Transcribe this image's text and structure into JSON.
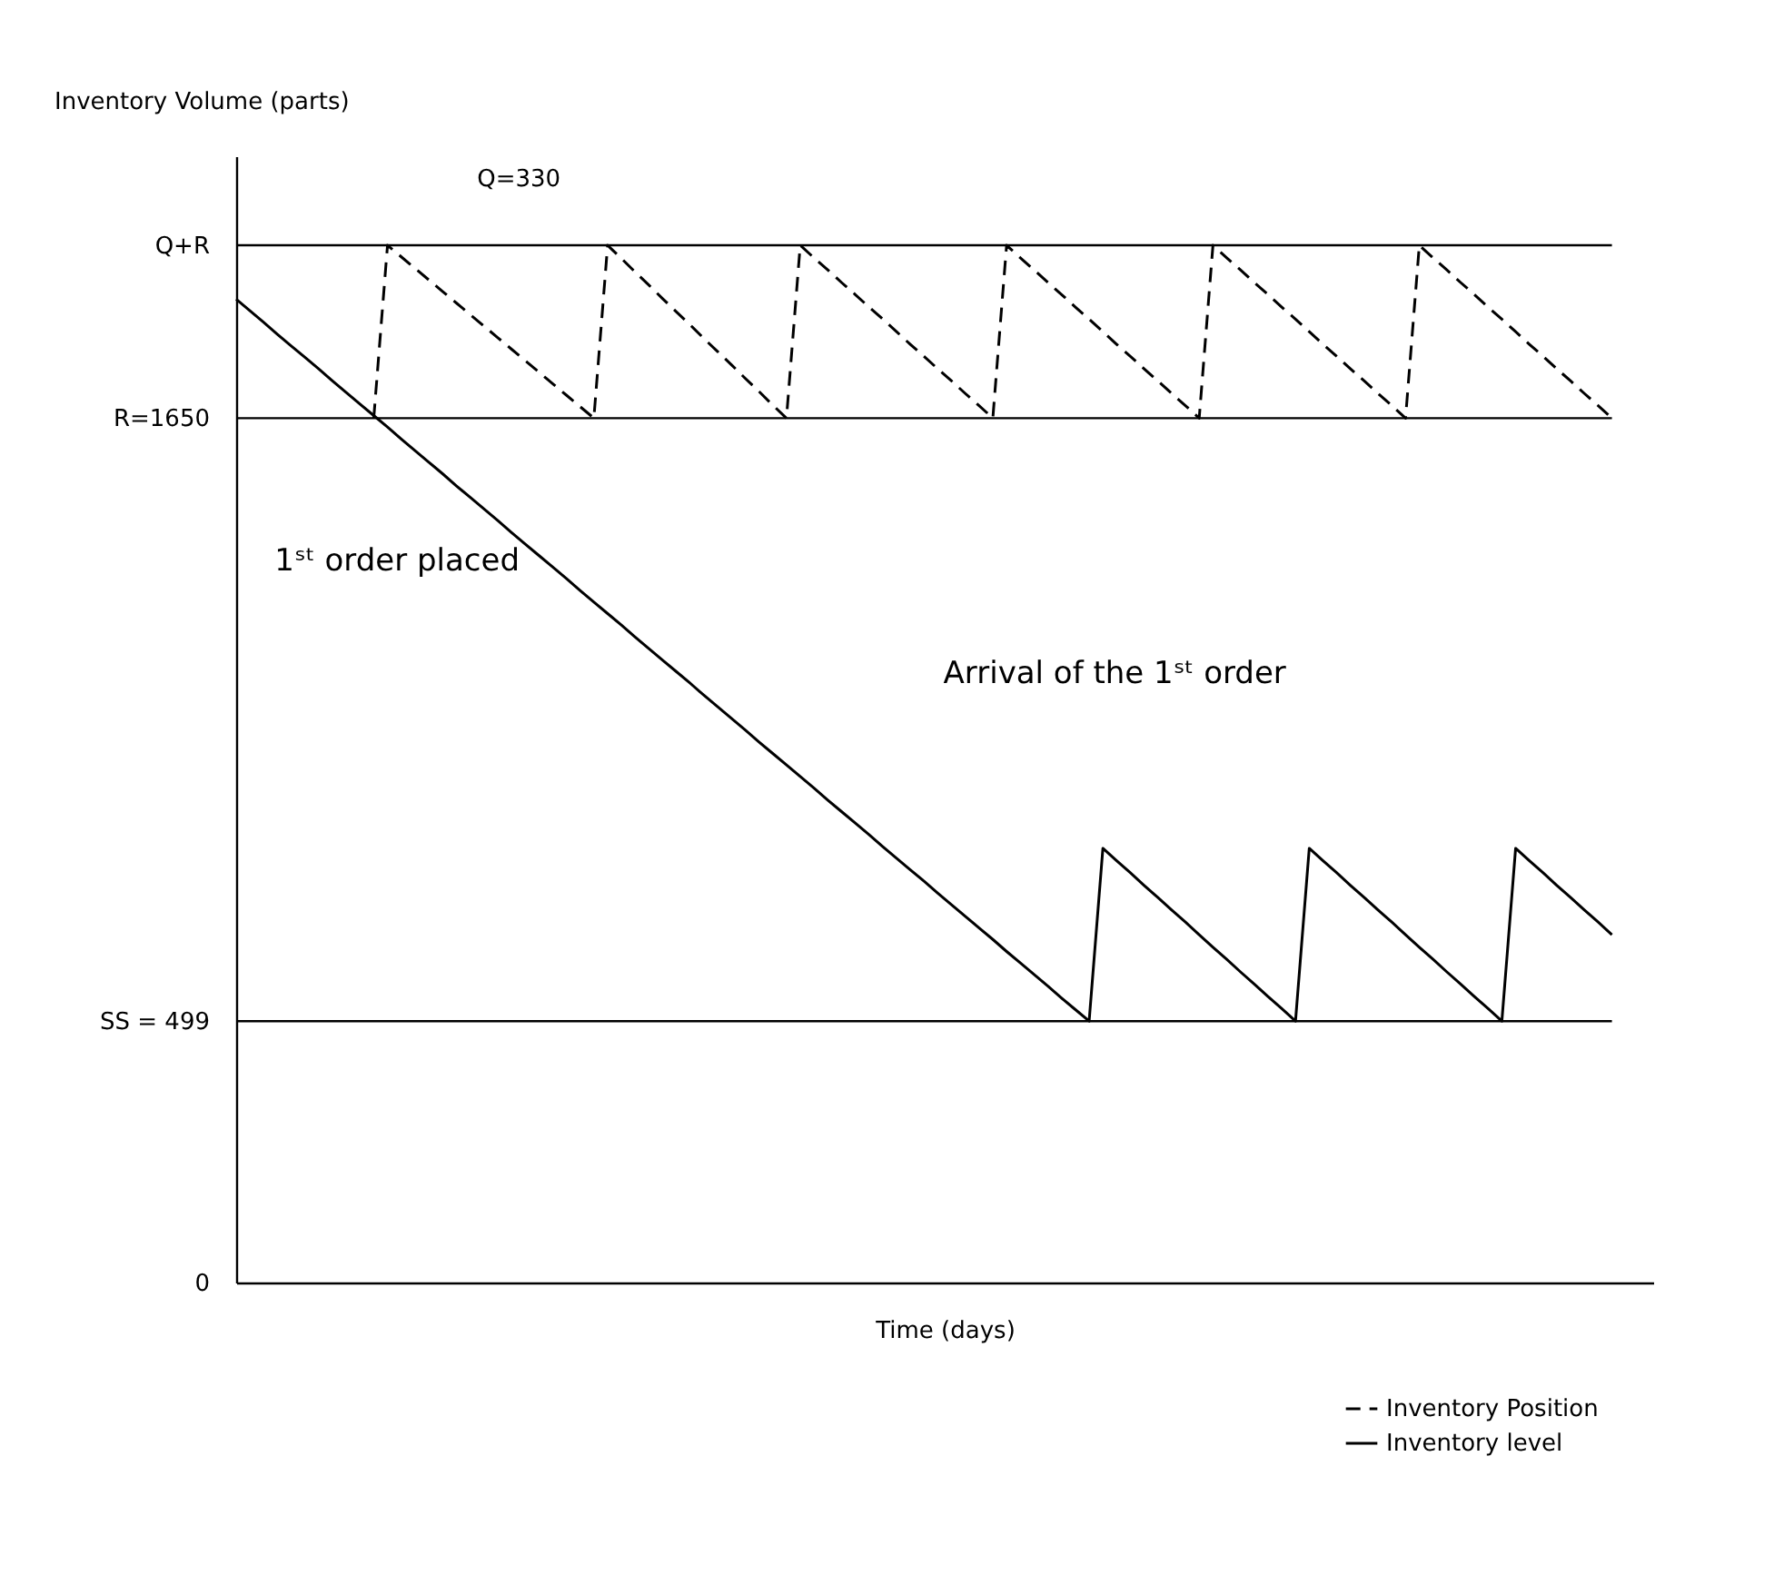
{
  "chart_data": {
    "type": "line",
    "xlabel": "Time (days)",
    "ylabel": "Inventory Volume (parts)",
    "ylim": [
      0,
      2150
    ],
    "yticks": [
      {
        "value": 0,
        "label": "0"
      },
      {
        "value": 499,
        "label": "SS = 499"
      },
      {
        "value": 1650,
        "label": "R=1650"
      },
      {
        "value": 1980,
        "label": "Q+R"
      }
    ],
    "tick_labels": "y",
    "grid": false,
    "marker": "none",
    "legend": "bottom right",
    "categories": [
      null,
      null,
      null,
      null,
      null,
      null,
      null,
      null,
      null,
      null,
      null,
      null,
      null,
      null,
      null,
      null,
      null,
      null,
      null,
      null,
      null,
      null,
      null,
      null,
      null,
      null,
      null,
      null,
      null,
      null,
      null,
      null,
      null,
      null,
      null,
      null,
      null,
      null,
      null,
      null,
      null,
      null,
      null,
      null,
      null,
      null,
      null,
      null,
      null,
      null,
      null,
      null,
      null,
      null,
      null,
      null,
      null,
      null,
      null,
      null,
      null,
      null,
      null,
      null,
      null,
      null,
      null,
      null,
      null,
      null,
      null,
      null,
      null,
      null,
      null,
      null,
      null,
      null,
      null,
      null,
      null,
      null,
      null,
      null,
      null,
      null,
      null,
      null,
      null,
      null,
      null,
      null,
      null,
      null,
      null,
      null,
      null,
      null,
      null,
      null,
      null
    ],
    "series": [
      {
        "name": "Inventory Position",
        "color": "#000000",
        "line_style": "dashed",
        "values": [
          null,
          null,
          null,
          null,
          null,
          null,
          null,
          null,
          null,
          null,
          1650,
          1980,
          1958,
          1936,
          1914,
          1892,
          1870,
          1848,
          1826,
          1804,
          1782,
          1760,
          1738,
          1716,
          1694,
          1672,
          1650,
          1980,
          1955,
          1929,
          1904,
          1878,
          1853,
          1828,
          1802,
          1777,
          1752,
          1726,
          1701,
          1675,
          1650,
          1980,
          1956,
          1933,
          1909,
          1886,
          1862,
          1839,
          1815,
          1791,
          1768,
          1744,
          1721,
          1697,
          1674,
          1650,
          1980,
          1956,
          1933,
          1909,
          1886,
          1862,
          1839,
          1815,
          1791,
          1768,
          1744,
          1721,
          1697,
          1674,
          1650,
          1980,
          1956,
          1933,
          1909,
          1886,
          1862,
          1839,
          1815,
          1791,
          1768,
          1744,
          1721,
          1697,
          1674,
          1650,
          1980,
          1956,
          1933,
          1909,
          1886,
          1862,
          1839,
          1815,
          1791,
          1768,
          1744,
          1721,
          1697,
          1674,
          1650
        ]
      },
      {
        "name": "Inventory level",
        "color": "#000000",
        "line_style": "solid",
        "values": [
          1877,
          1855,
          1833,
          1810,
          1788,
          1766,
          1744,
          1721,
          1699,
          1677,
          1655,
          1633,
          1610,
          1588,
          1566,
          1544,
          1521,
          1499,
          1477,
          1455,
          1432,
          1410,
          1388,
          1366,
          1344,
          1321,
          1299,
          1277,
          1255,
          1232,
          1210,
          1188,
          1166,
          1144,
          1121,
          1099,
          1077,
          1055,
          1032,
          1010,
          988,
          966,
          944,
          921,
          899,
          877,
          855,
          832,
          810,
          788,
          766,
          743,
          721,
          699,
          677,
          655,
          632,
          610,
          588,
          566,
          543,
          521,
          499,
          829,
          805,
          782,
          758,
          735,
          711,
          688,
          664,
          640,
          617,
          593,
          570,
          546,
          523,
          499,
          829,
          805,
          782,
          758,
          735,
          711,
          688,
          664,
          640,
          617,
          593,
          570,
          546,
          523,
          499,
          829,
          805,
          782,
          758,
          735,
          711,
          688,
          664
        ]
      }
    ],
    "ref_lines": [
      {
        "axis": "y",
        "value": 1980,
        "label": null,
        "color": "#000000"
      },
      {
        "axis": "y",
        "value": 1650,
        "label": null,
        "color": "#000000"
      },
      {
        "axis": "y",
        "value": 499,
        "label": null,
        "color": "#000000"
      }
    ],
    "annotations": [
      "Q=330",
      "1ˢᵗ order placed",
      "Arrival of the 1ˢᵗ order"
    ]
  }
}
